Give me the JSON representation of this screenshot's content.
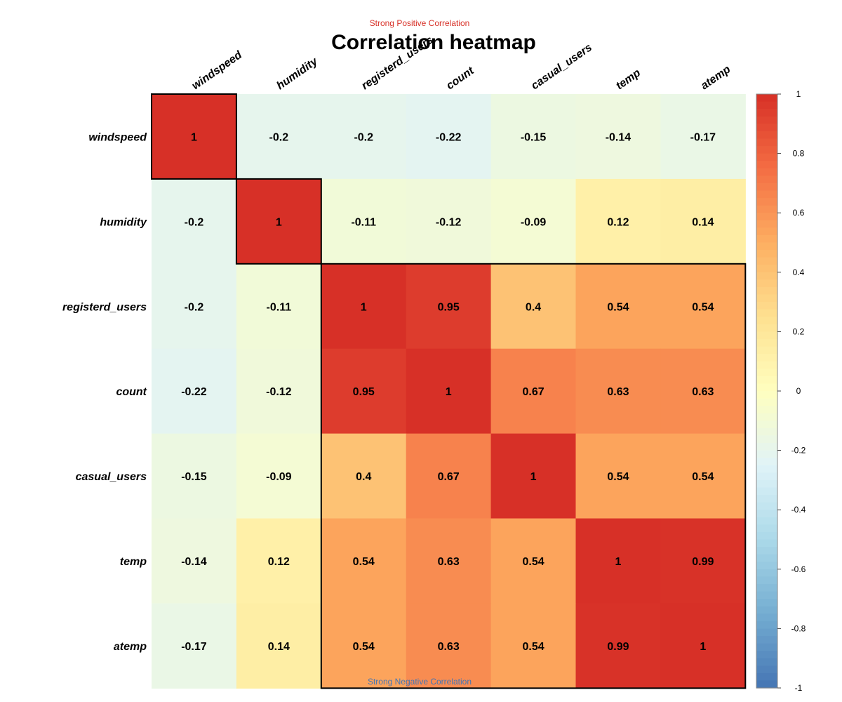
{
  "header": {
    "top_note": "Strong Positive Correlation",
    "title": "Correlation heatmap",
    "bottom_note": "Strong Negative Correlation"
  },
  "colors": {
    "top_note": "#d73027",
    "bottom_note": "#4575b4",
    "scale": [
      "#4575b4",
      "#74add1",
      "#abd9e9",
      "#e0f3f8",
      "#ffffbf",
      "#fee090",
      "#fdae61",
      "#f46d43",
      "#d73027"
    ]
  },
  "chart_data": {
    "type": "heatmap",
    "title": "Correlation heatmap",
    "variables": [
      "windspeed",
      "humidity",
      "registerd_users",
      "count",
      "casual_users",
      "temp",
      "atemp"
    ],
    "matrix": [
      [
        1,
        -0.2,
        -0.2,
        -0.22,
        -0.15,
        -0.14,
        -0.17
      ],
      [
        -0.2,
        1,
        -0.11,
        -0.12,
        -0.09,
        0.12,
        0.14
      ],
      [
        -0.2,
        -0.11,
        1,
        0.95,
        0.4,
        0.54,
        0.54
      ],
      [
        -0.22,
        -0.12,
        0.95,
        1,
        0.67,
        0.63,
        0.63
      ],
      [
        -0.15,
        -0.09,
        0.4,
        0.67,
        1,
        0.54,
        0.54
      ],
      [
        -0.14,
        0.12,
        0.54,
        0.63,
        0.54,
        1,
        0.99
      ],
      [
        -0.17,
        0.14,
        0.54,
        0.63,
        0.54,
        0.99,
        1
      ]
    ],
    "clusters": [
      [
        0,
        0
      ],
      [
        1,
        1
      ],
      [
        2,
        6
      ]
    ],
    "colorbar": {
      "range": [
        -1,
        1
      ],
      "ticks": [
        "1",
        "0.8",
        "0.6",
        "0.4",
        "0.2",
        "0",
        "-0.2",
        "-0.4",
        "-0.6",
        "-0.8",
        "-1"
      ]
    }
  }
}
